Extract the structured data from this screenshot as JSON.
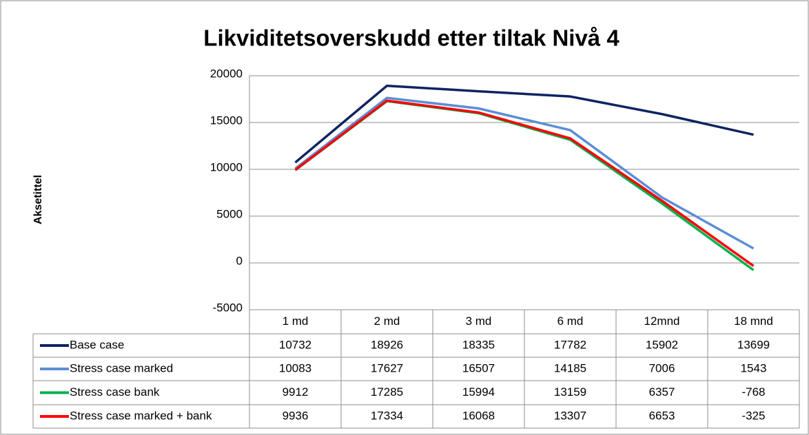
{
  "chart_data": {
    "type": "line",
    "title": "Likviditetsoverskudd etter tiltak Nivå 4",
    "y_label": "Aksetittel",
    "categories": [
      "1 md",
      "2 md",
      "3 md",
      "6 md",
      "12mnd",
      "18 mnd"
    ],
    "series": [
      {
        "name": "Base case",
        "color": "#0e2462",
        "values": [
          10732,
          18926,
          18335,
          17782,
          15902,
          13699
        ]
      },
      {
        "name": "Stress case marked",
        "color": "#5b8ed6",
        "values": [
          10083,
          17627,
          16507,
          14185,
          7006,
          1543
        ]
      },
      {
        "name": "Stress case bank",
        "color": "#00b050",
        "values": [
          9912,
          17285,
          15994,
          13159,
          6357,
          -768
        ]
      },
      {
        "name": "Stress case marked + bank",
        "color": "#ff0000",
        "values": [
          9936,
          17334,
          16068,
          13307,
          6653,
          -325
        ]
      }
    ],
    "ylim": [
      -5000,
      20000
    ],
    "yticks": [
      -5000,
      0,
      5000,
      10000,
      15000,
      20000
    ],
    "grid": true
  }
}
